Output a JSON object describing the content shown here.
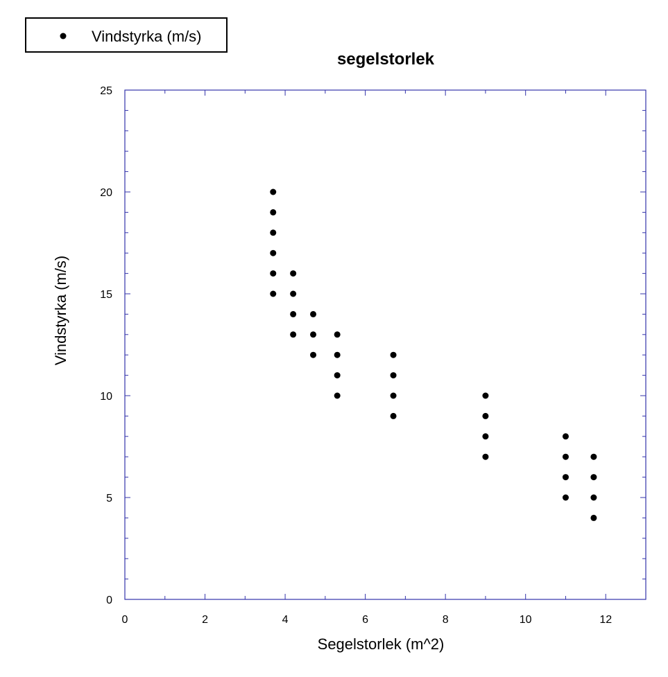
{
  "chart_data": {
    "type": "scatter",
    "title": "segelstorlek",
    "xlabel": "Segelstorlek (m^2)",
    "ylabel": "Vindstyrka (m/s)",
    "xlim": [
      0,
      13
    ],
    "ylim": [
      0,
      25
    ],
    "x_ticks": [
      0,
      2,
      4,
      6,
      8,
      10,
      12
    ],
    "y_ticks": [
      0,
      5,
      10,
      15,
      20,
      25
    ],
    "x_tick_labels": [
      "0",
      "2",
      "4",
      "6",
      "8",
      "10",
      "12"
    ],
    "y_tick_labels": [
      "0",
      "5",
      "10",
      "15",
      "20",
      "25"
    ],
    "x_minor_step": 1,
    "y_minor_step": 1,
    "grid": false,
    "legend_position": "top-left",
    "series": [
      {
        "name": "Vindstyrka (m/s)",
        "marker": "circle",
        "color": "#000000",
        "points": [
          [
            3.7,
            15
          ],
          [
            3.7,
            16
          ],
          [
            3.7,
            17
          ],
          [
            3.7,
            18
          ],
          [
            3.7,
            19
          ],
          [
            3.7,
            20
          ],
          [
            4.2,
            13
          ],
          [
            4.2,
            14
          ],
          [
            4.2,
            15
          ],
          [
            4.2,
            16
          ],
          [
            4.7,
            12
          ],
          [
            4.7,
            13
          ],
          [
            4.7,
            14
          ],
          [
            5.3,
            10
          ],
          [
            5.3,
            11
          ],
          [
            5.3,
            12
          ],
          [
            5.3,
            13
          ],
          [
            6.7,
            9
          ],
          [
            6.7,
            10
          ],
          [
            6.7,
            11
          ],
          [
            6.7,
            12
          ],
          [
            9.0,
            7
          ],
          [
            9.0,
            8
          ],
          [
            9.0,
            9
          ],
          [
            9.0,
            10
          ],
          [
            11.0,
            5
          ],
          [
            11.0,
            6
          ],
          [
            11.0,
            7
          ],
          [
            11.0,
            8
          ],
          [
            11.7,
            4
          ],
          [
            11.7,
            5
          ],
          [
            11.7,
            6
          ],
          [
            11.7,
            7
          ]
        ]
      }
    ]
  },
  "colors": {
    "frame": "#3333aa",
    "marker": "#000000",
    "legend_border": "#000000"
  }
}
